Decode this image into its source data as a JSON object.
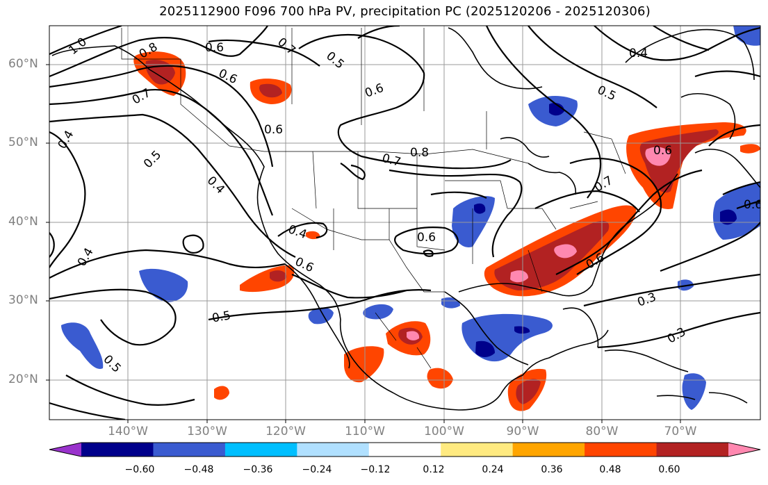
{
  "title": "2025112900 F096 700 hPa PV, precipitation PC (2025120206 - 2025120306)",
  "lat_labels": [
    "60°N",
    "50°N",
    "40°N",
    "30°N",
    "20°N"
  ],
  "lon_labels": [
    "140°W",
    "130°W",
    "120°W",
    "110°W",
    "100°W",
    "90°W",
    "80°W",
    "70°W"
  ],
  "colorbar": {
    "labels": [
      "−0.60",
      "−0.48",
      "−0.36",
      "−0.24",
      "−0.12",
      "0.12",
      "0.24",
      "0.36",
      "0.48",
      "0.60"
    ],
    "colors": [
      "#9932cc",
      "#00008b",
      "#3a5bd0",
      "#00bfff",
      "#b0e0ff",
      "#ffffff",
      "#ffea80",
      "#ffa500",
      "#ff4500",
      "#b22222",
      "#ff88b0"
    ]
  },
  "contour_labels": [
    "1.0",
    "0.8",
    "0.6",
    "0.7",
    "0.5",
    "0.6",
    "0.4",
    "0.5",
    "0.7",
    "0.6",
    "0.6",
    "0.4",
    "0.5",
    "0.7",
    "0.8",
    "0.6",
    "0.7",
    "0.4",
    "0.4",
    "0.4",
    "0.6",
    "0.6",
    "0.3",
    "0.3",
    "0.5",
    "0.5",
    "0.6",
    "0.6"
  ]
}
